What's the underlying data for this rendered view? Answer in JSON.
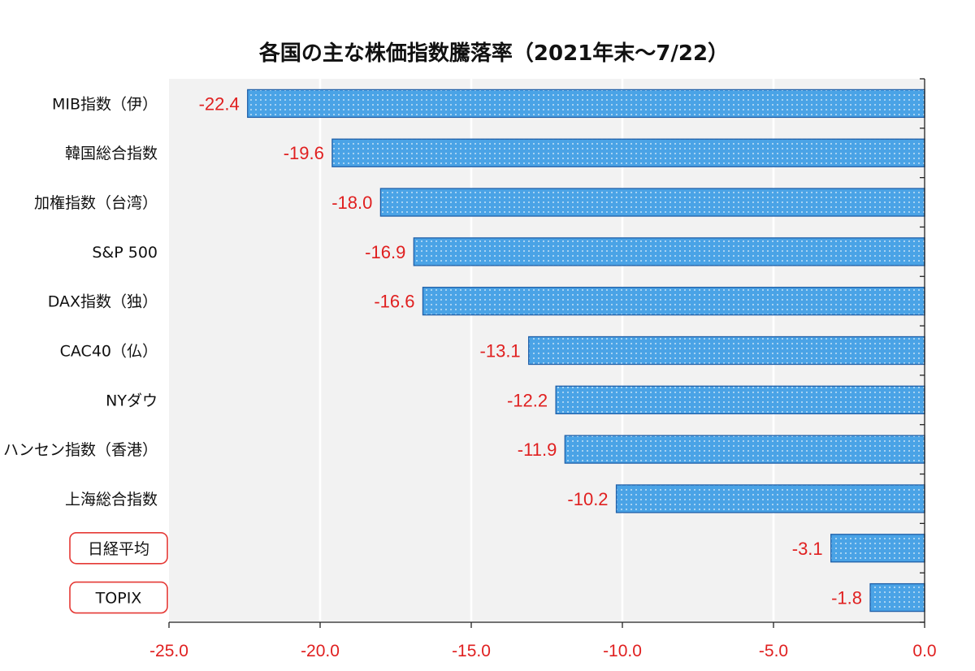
{
  "chart_data": {
    "type": "bar",
    "orientation": "horizontal",
    "title": "各国の主な株価指数騰落率（2021年末～7/22）",
    "categories": [
      "MIB指数（伊）",
      "韓国総合指数",
      "加権指数（台湾）",
      "S&P 500",
      "DAX指数（独）",
      "CAC40（仏）",
      "NYダウ",
      "ハンセン指数（香港）",
      "上海総合指数",
      "日経平均",
      "TOPIX"
    ],
    "values": [
      -22.4,
      -19.6,
      -18.0,
      -16.9,
      -16.6,
      -13.1,
      -12.2,
      -11.9,
      -10.2,
      -3.1,
      -1.8
    ],
    "value_labels": [
      "-22.4",
      "-19.6",
      "-18.0",
      "-16.9",
      "-16.6",
      "-13.1",
      "-12.2",
      "-11.9",
      "-10.2",
      "-3.1",
      "-1.8"
    ],
    "highlighted": [
      "日経平均",
      "TOPIX"
    ],
    "xlim": [
      -25.0,
      0.0
    ],
    "xticks": [
      -25.0,
      -20.0,
      -15.0,
      -10.0,
      -5.0,
      0.0
    ],
    "xtick_labels": [
      "-25.0",
      "-20.0",
      "-15.0",
      "-10.0",
      "-5.0",
      "0.0"
    ],
    "xlabel": "(%)",
    "ylabel": "",
    "grid": true,
    "colors": {
      "bar_fill": "#4aa3e6",
      "bar_dots": "#e9f4fc",
      "bar_edge": "#1f5fa8",
      "value_label": "#e02020",
      "tick_label": "#e02020",
      "plot_background": "#f2f2f2",
      "highlight_box": "#e53935"
    }
  }
}
